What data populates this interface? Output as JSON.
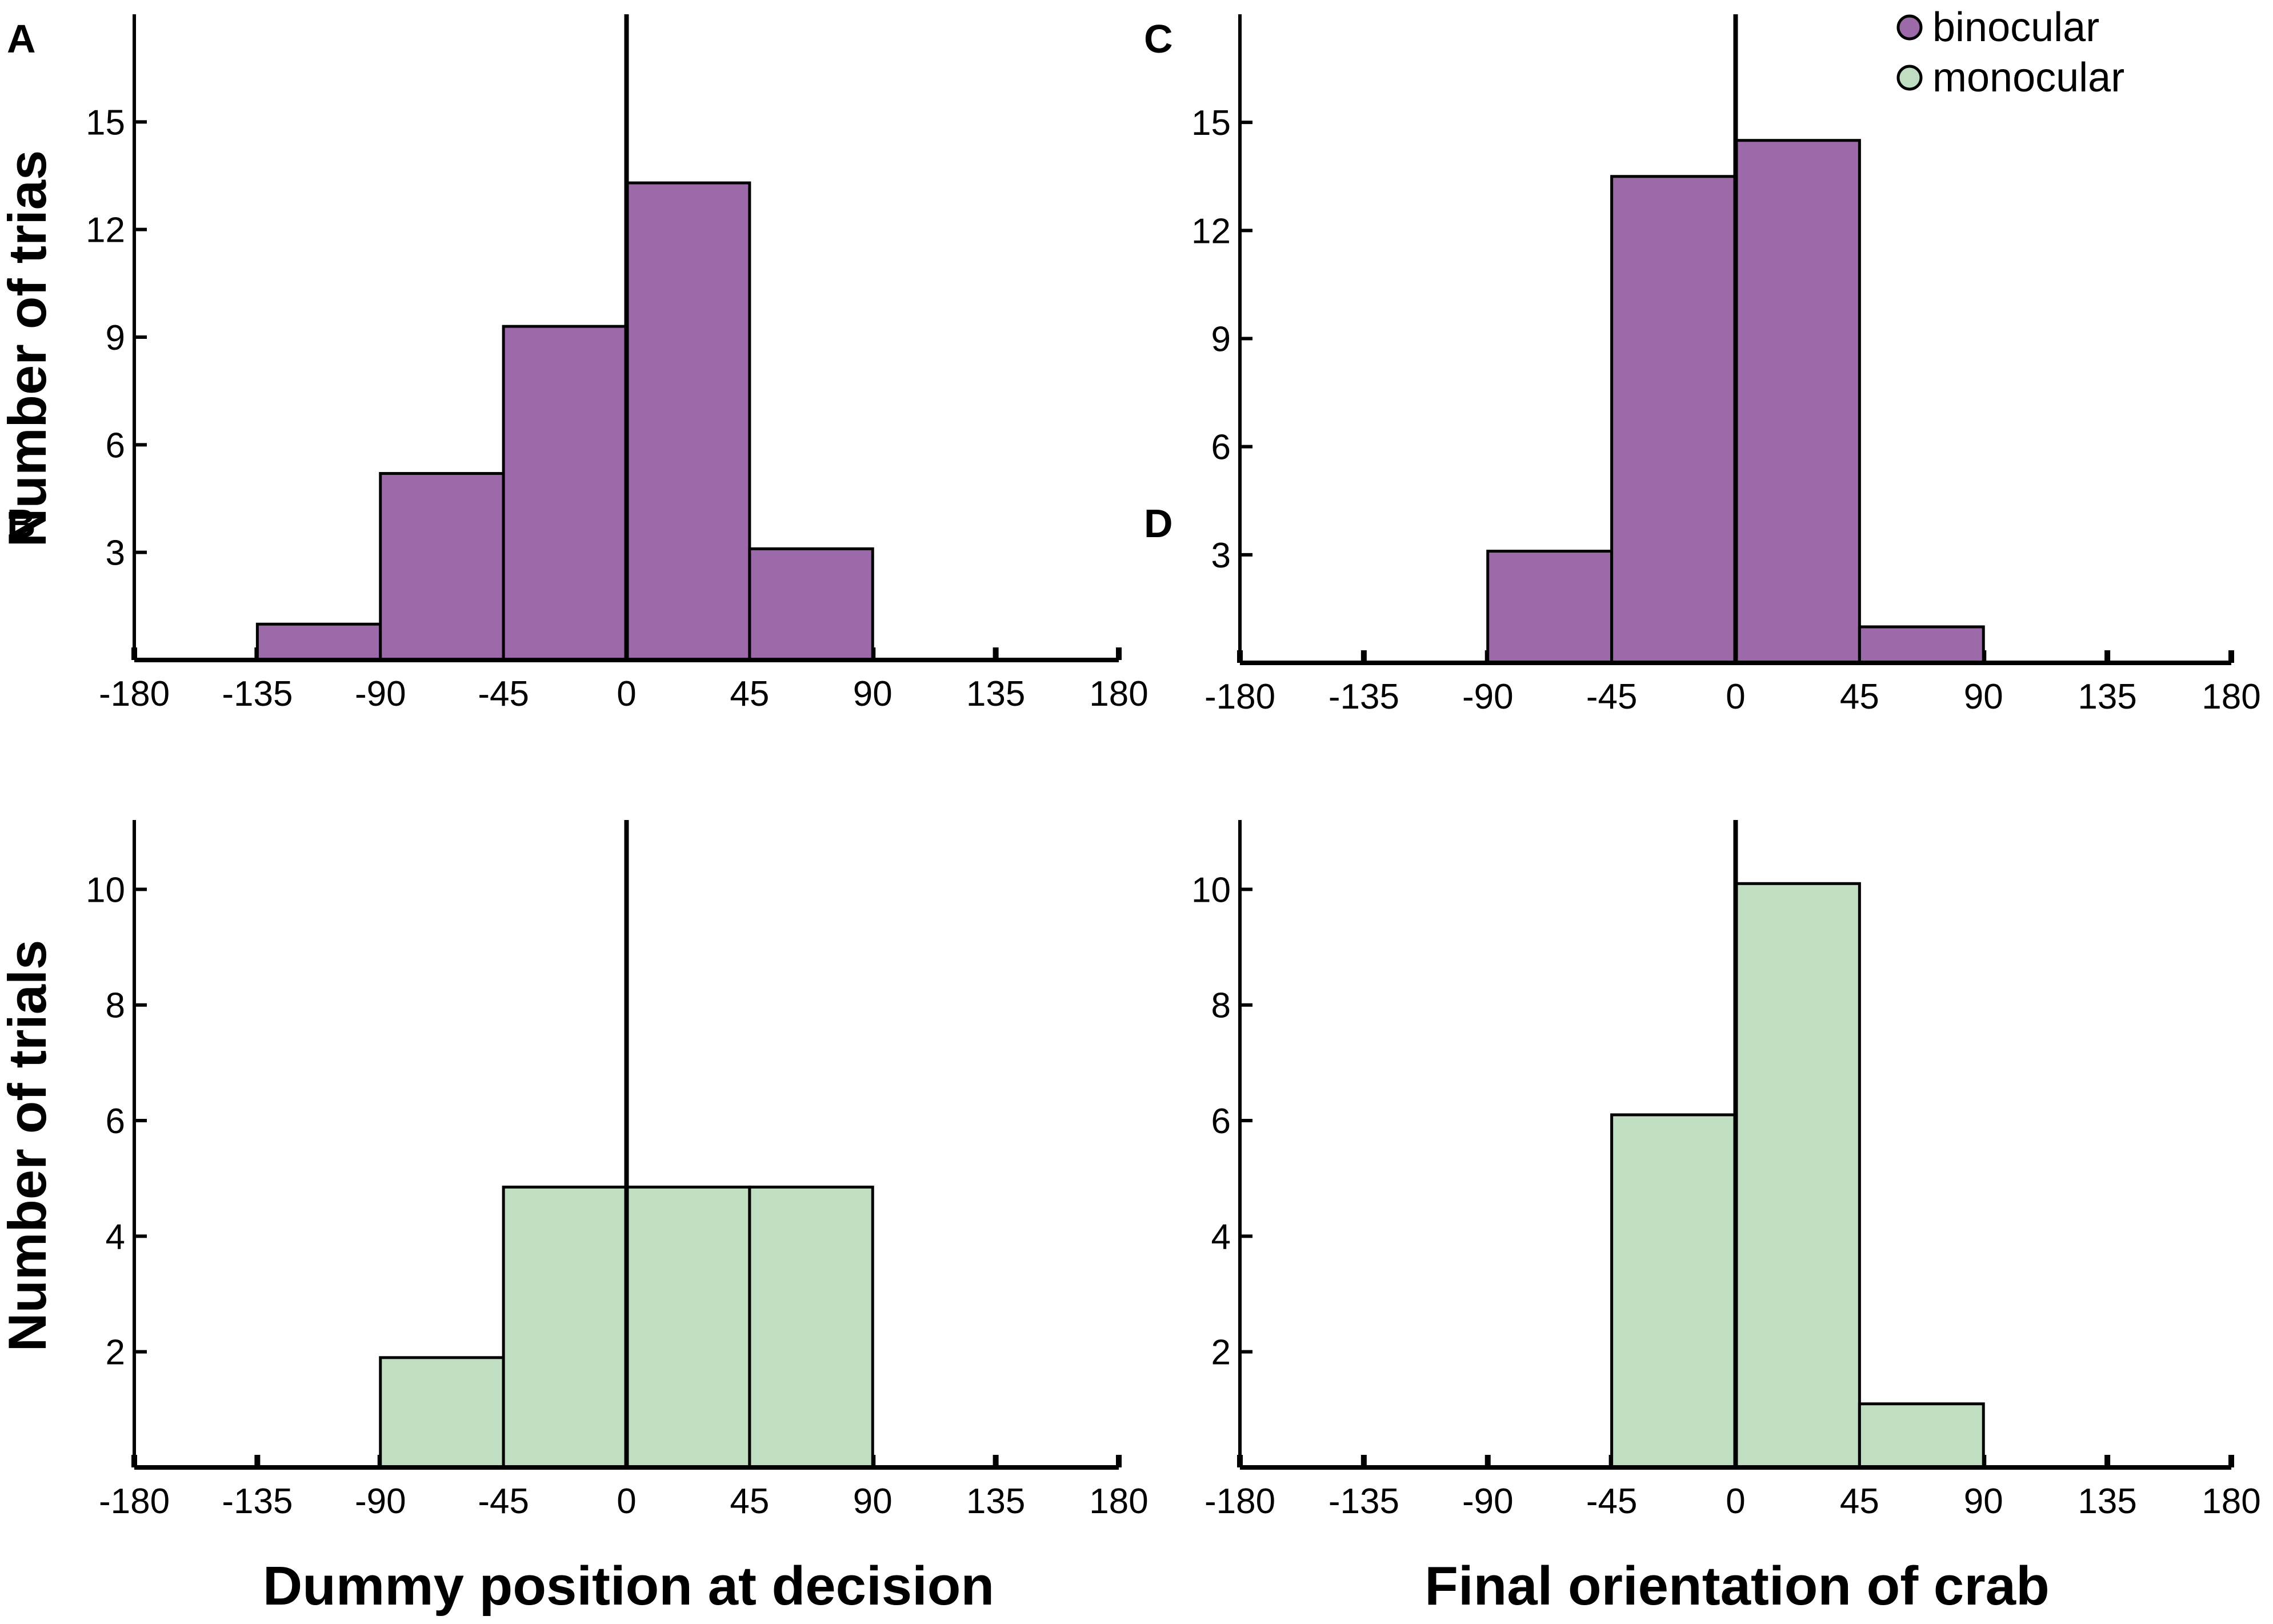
{
  "colors": {
    "binocular": "#9c6aa9",
    "monocular": "#c0dfc2",
    "axis": "#000000"
  },
  "legend": {
    "items": [
      {
        "label": "binocular",
        "color": "#9c6aa9"
      },
      {
        "label": "monocular",
        "color": "#c0dfc2"
      }
    ]
  },
  "labels": {
    "y_top": "Number of trias",
    "y_bottom": "Number of trials",
    "x_left": "Dummy position at decision",
    "x_right": "Final orientation of crab"
  },
  "chart_data": [
    {
      "panel": "A",
      "type": "bar",
      "series_name": "binocular",
      "bins": [
        [
          -135,
          -90
        ],
        [
          -90,
          -45
        ],
        [
          -45,
          0
        ],
        [
          0,
          45
        ],
        [
          45,
          90
        ]
      ],
      "values": [
        1,
        5.2,
        9.3,
        13.3,
        3.1
      ],
      "xlim": [
        -180,
        180
      ],
      "xticks": [
        -180,
        -135,
        -90,
        -45,
        0,
        45,
        90,
        135,
        180
      ],
      "ylim": [
        0,
        18
      ],
      "yticks": [
        3,
        6,
        9,
        12,
        15
      ],
      "ylabel": "Number of trias",
      "xlabel": "Dummy position at decision"
    },
    {
      "panel": "B",
      "type": "bar",
      "series_name": "monocular",
      "bins": [
        [
          -90,
          -45
        ],
        [
          -45,
          0
        ],
        [
          0,
          45
        ],
        [
          45,
          90
        ]
      ],
      "values": [
        1.9,
        4.85,
        4.85,
        4.85
      ],
      "xlim": [
        -180,
        180
      ],
      "xticks": [
        -180,
        -135,
        -90,
        -45,
        0,
        45,
        90,
        135,
        180
      ],
      "ylim": [
        0,
        11.2
      ],
      "yticks": [
        2,
        4,
        6,
        8,
        10
      ],
      "ylabel": "Number of trials",
      "xlabel": "Dummy position at decision"
    },
    {
      "panel": "C",
      "type": "bar",
      "series_name": "binocular",
      "bins": [
        [
          -90,
          -45
        ],
        [
          -45,
          0
        ],
        [
          0,
          45
        ],
        [
          45,
          90
        ]
      ],
      "values": [
        3.1,
        13.5,
        14.5,
        1
      ],
      "xlim": [
        -180,
        180
      ],
      "xticks": [
        -180,
        -135,
        -90,
        -45,
        0,
        45,
        90,
        135,
        180
      ],
      "ylim": [
        0,
        18
      ],
      "yticks": [
        3,
        6,
        9,
        12,
        15
      ],
      "ylabel": "",
      "xlabel": "Final orientation of crab"
    },
    {
      "panel": "D",
      "type": "bar",
      "series_name": "monocular",
      "bins": [
        [
          -45,
          0
        ],
        [
          0,
          45
        ],
        [
          45,
          90
        ]
      ],
      "values": [
        6.1,
        10.1,
        1.1
      ],
      "xlim": [
        -180,
        180
      ],
      "xticks": [
        -180,
        -135,
        -90,
        -45,
        0,
        45,
        90,
        135,
        180
      ],
      "ylim": [
        0,
        11.2
      ],
      "yticks": [
        2,
        4,
        6,
        8,
        10
      ],
      "ylabel": "",
      "xlabel": "Final orientation of crab"
    }
  ]
}
